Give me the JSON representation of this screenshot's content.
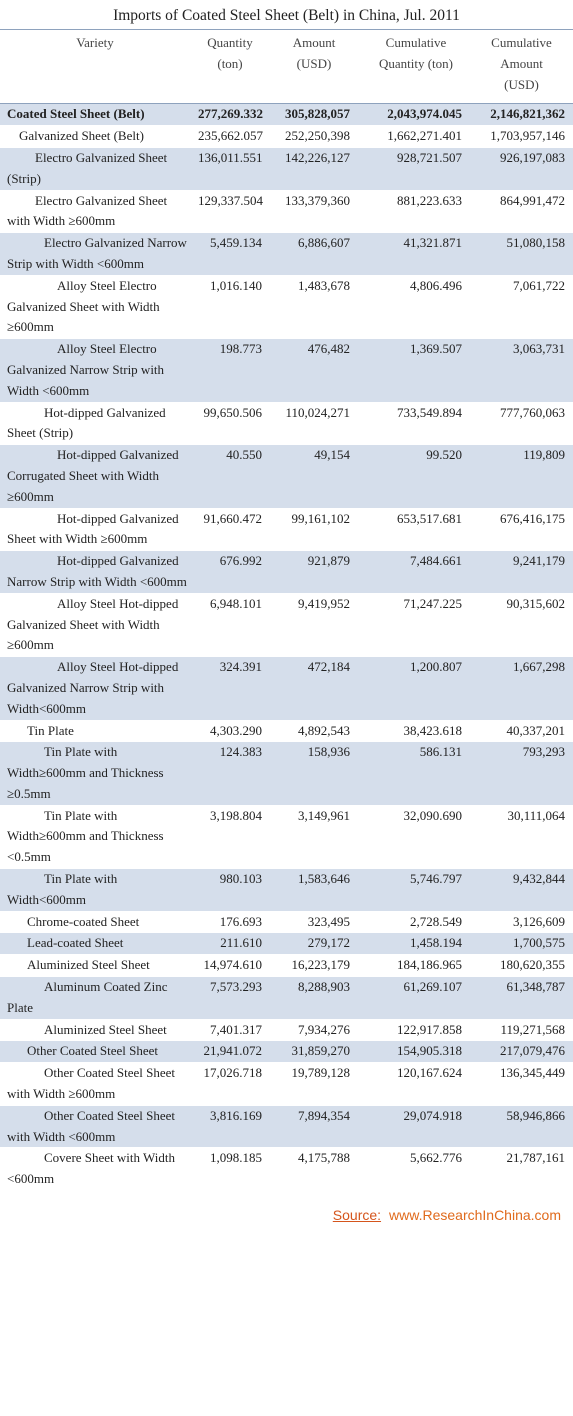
{
  "title": "Imports of Coated Steel Sheet (Belt) in China, Jul. 2011",
  "header": [
    "Variety",
    "Quantity (ton)",
    "Amount (USD)",
    "Cumulative Quantity (ton)",
    "Cumulative Amount (USD)"
  ],
  "rows": [
    [
      "Coated Steel Sheet (Belt)",
      "277,269.332",
      "305,828,057",
      "2,043,974.045",
      "2,146,821,362"
    ],
    [
      "Galvanized Sheet (Belt)",
      "235,662.057",
      "252,250,398",
      "1,662,271.401",
      "1,703,957,146"
    ],
    [
      "Electro Galvanized Sheet (Strip)",
      "136,011.551",
      "142,226,127",
      "928,721.507",
      "926,197,083"
    ],
    [
      "Electro Galvanized Sheet with Width ≥600mm",
      "129,337.504",
      "133,379,360",
      "881,223.633",
      "864,991,472"
    ],
    [
      "Electro Galvanized Narrow Strip with Width <600mm",
      "5,459.134",
      "6,886,607",
      "41,321.871",
      "51,080,158"
    ],
    [
      "Alloy Steel Electro Galvanized Sheet with Width ≥600mm",
      "1,016.140",
      "1,483,678",
      "4,806.496",
      "7,061,722"
    ],
    [
      "Alloy Steel Electro Galvanized Narrow Strip with Width <600mm",
      "198.773",
      "476,482",
      "1,369.507",
      "3,063,731"
    ],
    [
      "Hot-dipped Galvanized Sheet (Strip)",
      "99,650.506",
      "110,024,271",
      "733,549.894",
      "777,760,063"
    ],
    [
      "Hot-dipped Galvanized Corrugated Sheet with Width ≥600mm",
      "40.550",
      "49,154",
      "99.520",
      "119,809"
    ],
    [
      "Hot-dipped Galvanized Sheet with Width ≥600mm",
      "91,660.472",
      "99,161,102",
      "653,517.681",
      "676,416,175"
    ],
    [
      "Hot-dipped Galvanized Narrow Strip with Width <600mm",
      "676.992",
      "921,879",
      "7,484.661",
      "9,241,179"
    ],
    [
      "Alloy Steel Hot-dipped Galvanized Sheet with Width ≥600mm",
      "6,948.101",
      "9,419,952",
      "71,247.225",
      "90,315,602"
    ],
    [
      "Alloy Steel Hot-dipped Galvanized Narrow Strip with Width<600mm",
      "324.391",
      "472,184",
      "1,200.807",
      "1,667,298"
    ],
    [
      "Tin Plate",
      "4,303.290",
      "4,892,543",
      "38,423.618",
      "40,337,201"
    ],
    [
      "Tin Plate with Width≥600mm and Thickness ≥0.5mm",
      "124.383",
      "158,936",
      "586.131",
      "793,293"
    ],
    [
      "Tin Plate with Width≥600mm and Thickness <0.5mm",
      "3,198.804",
      "3,149,961",
      "32,090.690",
      "30,111,064"
    ],
    [
      "Tin Plate with Width<600mm",
      "980.103",
      "1,583,646",
      "5,746.797",
      "9,432,844"
    ],
    [
      "Chrome-coated Sheet",
      "176.693",
      "323,495",
      "2,728.549",
      "3,126,609"
    ],
    [
      "Lead-coated Sheet",
      "211.610",
      "279,172",
      "1,458.194",
      "1,700,575"
    ],
    [
      "Aluminized Steel Sheet",
      "14,974.610",
      "16,223,179",
      "184,186.965",
      "180,620,355"
    ],
    [
      "Aluminum Coated Zinc Plate",
      "7,573.293",
      "8,288,903",
      "61,269.107",
      "61,348,787"
    ],
    [
      "Aluminized Steel Sheet",
      "7,401.317",
      "7,934,276",
      "122,917.858",
      "119,271,568"
    ],
    [
      "Other Coated Steel Sheet",
      "21,941.072",
      "31,859,270",
      "154,905.318",
      "217,079,476"
    ],
    [
      "Other Coated Steel Sheet with Width ≥600mm",
      "17,026.718",
      "19,789,128",
      "120,167.624",
      "136,345,449"
    ],
    [
      "Other Coated Steel Sheet with Width <600mm",
      "3,816.169",
      "7,894,354",
      "29,074.918",
      "58,946,866"
    ],
    [
      "Covere Sheet with Width <600mm",
      "1,098.185",
      "4,175,788",
      "5,662.776",
      "21,787,161"
    ]
  ],
  "source": {
    "label": "Source:",
    "url": "www.ResearchInChina.com"
  }
}
